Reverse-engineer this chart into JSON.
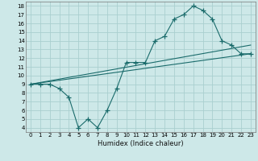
{
  "xlabel": "Humidex (Indice chaleur)",
  "xlim": [
    -0.5,
    23.5
  ],
  "ylim": [
    3.5,
    18.5
  ],
  "xticks": [
    0,
    1,
    2,
    3,
    4,
    5,
    6,
    7,
    8,
    9,
    10,
    11,
    12,
    13,
    14,
    15,
    16,
    17,
    18,
    19,
    20,
    21,
    22,
    23
  ],
  "yticks": [
    4,
    5,
    6,
    7,
    8,
    9,
    10,
    11,
    12,
    13,
    14,
    15,
    16,
    17,
    18
  ],
  "background_color": "#cde8e8",
  "grid_color": "#aacfcf",
  "line_color": "#1a6b6b",
  "line1_x": [
    0,
    23
  ],
  "line1_y": [
    9.0,
    12.5
  ],
  "line2_x": [
    0,
    23
  ],
  "line2_y": [
    9.0,
    13.5
  ],
  "curve_x": [
    0,
    1,
    2,
    3,
    4,
    5,
    6,
    7,
    8,
    9,
    10,
    11,
    12,
    13,
    14,
    15,
    16,
    17,
    18,
    19,
    20,
    21,
    22,
    23
  ],
  "curve_y": [
    9,
    9,
    9,
    8.5,
    7.5,
    4.0,
    5.0,
    4.0,
    6.0,
    8.5,
    11.5,
    11.5,
    11.5,
    14.0,
    14.5,
    16.5,
    17.0,
    18.0,
    17.5,
    16.5,
    14.0,
    13.5,
    12.5,
    12.5
  ]
}
